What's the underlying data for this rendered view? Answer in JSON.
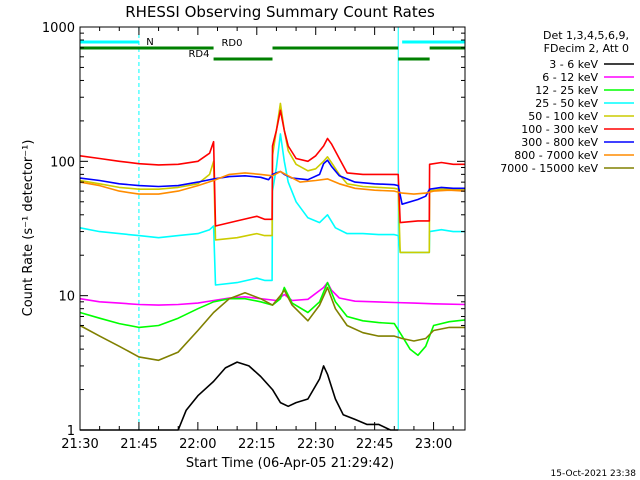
{
  "chart_data": {
    "type": "line",
    "title": "RHESSI Observing Summary Count Rates",
    "xlabel": "Start Time (06-Apr-05 21:29:42)",
    "ylabel": "Count Rate (s⁻¹ detector⁻¹)",
    "yscale": "log",
    "ylim": [
      1,
      1000
    ],
    "xlim_minutes_from_2130": [
      0,
      98
    ],
    "x_tick_labels": [
      "21:30",
      "21:45",
      "22:00",
      "22:15",
      "22:30",
      "22:45",
      "23:00"
    ],
    "y_tick_labels": [
      "1",
      "10",
      "100",
      "1000"
    ],
    "grid": false,
    "legend": {
      "position": "right",
      "header": [
        "Det 1,3,4,5,6,9,",
        "FDecim 2, Att 0"
      ],
      "entries": [
        {
          "label": "3 - 6 keV",
          "color": "#000000"
        },
        {
          "label": "6 - 12 keV",
          "color": "#ff00ff"
        },
        {
          "label": "12 - 25 keV",
          "color": "#00ff00"
        },
        {
          "label": "25 - 50 keV",
          "color": "#00ffff"
        },
        {
          "label": "50 - 100 keV",
          "color": "#cccc00"
        },
        {
          "label": "100 - 300 keV",
          "color": "#ff0000"
        },
        {
          "label": "300 - 800 keV",
          "color": "#0000ff"
        },
        {
          "label": "800 - 7000 keV",
          "color": "#ff8c00"
        },
        {
          "label": "7000 - 15000 keV",
          "color": "#808000"
        }
      ]
    },
    "state_bars": [
      {
        "label": "N",
        "color": "#00ffff",
        "segments": [
          [
            0,
            15
          ],
          [
            82,
            98
          ]
        ]
      },
      {
        "label": "RD0",
        "color": "#008000",
        "segments": [
          [
            0,
            34
          ],
          [
            49,
            81
          ],
          [
            89,
            98
          ]
        ]
      },
      {
        "label": "RD4",
        "color": "#008000",
        "segments": [
          [
            34,
            49
          ],
          [
            81,
            89
          ]
        ]
      }
    ],
    "eclipse_boundaries_minutes": [
      0,
      15,
      81,
      98
    ],
    "series": [
      {
        "label": "3 - 6 keV",
        "color": "#000000",
        "x": [
          0,
          25,
          27,
          30,
          34,
          37,
          40,
          43,
          46,
          49,
          51,
          53,
          55,
          58,
          61,
          62,
          63,
          65,
          67,
          70,
          73,
          76,
          79,
          81
        ],
        "y": [
          1,
          1,
          1.4,
          1.8,
          2.3,
          2.9,
          3.2,
          3.0,
          2.5,
          2.0,
          1.6,
          1.5,
          1.6,
          1.7,
          2.4,
          3.0,
          2.6,
          1.7,
          1.3,
          1.2,
          1.1,
          1.1,
          1.0,
          1
        ]
      },
      {
        "label": "6 - 12 keV",
        "color": "#ff00ff",
        "x": [
          0,
          5,
          10,
          15,
          20,
          25,
          30,
          34,
          38,
          42,
          46,
          50,
          52,
          54,
          58,
          62,
          63,
          64,
          66,
          70,
          75,
          80,
          85,
          90,
          98
        ],
        "y": [
          9.5,
          9.0,
          8.8,
          8.6,
          8.5,
          8.6,
          8.8,
          9.2,
          9.6,
          9.8,
          9.5,
          9.2,
          10.2,
          9.2,
          9.4,
          11.5,
          12.5,
          11.0,
          9.6,
          9.1,
          9.0,
          8.9,
          8.8,
          8.7,
          8.6
        ]
      },
      {
        "label": "12 - 25 keV",
        "color": "#00ff00",
        "x": [
          0,
          5,
          10,
          15,
          20,
          25,
          30,
          34,
          38,
          42,
          46,
          49,
          51,
          52,
          54,
          58,
          61,
          63,
          65,
          68,
          72,
          76,
          80,
          82,
          84,
          86,
          88,
          90,
          94,
          98
        ],
        "y": [
          7.5,
          6.8,
          6.2,
          5.8,
          6.0,
          6.8,
          8.0,
          9.0,
          9.5,
          9.5,
          9.0,
          8.5,
          9.5,
          11.5,
          8.8,
          7.5,
          9.0,
          12.5,
          9.0,
          7.0,
          6.5,
          6.3,
          6.2,
          5.0,
          4.0,
          3.6,
          4.2,
          6.0,
          6.4,
          6.6
        ]
      },
      {
        "label": "25 - 50 keV",
        "color": "#00ffff",
        "x": [
          0,
          5,
          10,
          15,
          20,
          25,
          30,
          33,
          34,
          34.5,
          40,
          45,
          47,
          48.9,
          49,
          50,
          51,
          52,
          53,
          55,
          58,
          61,
          63,
          65,
          68,
          72,
          76,
          80,
          81,
          81.5,
          86,
          88.9,
          89,
          92,
          95,
          98
        ],
        "y": [
          32,
          30,
          29,
          28,
          27,
          28,
          29,
          31,
          33,
          12,
          12.5,
          13.5,
          13,
          13,
          60,
          90,
          160,
          100,
          70,
          50,
          38,
          35,
          40,
          32,
          29,
          29,
          28.5,
          28.5,
          28,
          21,
          21,
          21,
          30,
          31,
          30,
          30
        ]
      },
      {
        "label": "50 - 100 keV",
        "color": "#cccc00",
        "x": [
          0,
          5,
          10,
          15,
          20,
          25,
          30,
          33,
          34,
          34.5,
          40,
          45,
          47,
          48.9,
          49,
          50,
          51,
          52,
          53,
          55,
          58,
          60,
          62,
          63,
          64,
          66,
          68,
          72,
          76,
          80,
          81,
          81.5,
          86,
          88.9,
          89,
          92,
          95,
          98
        ],
        "y": [
          72,
          68,
          64,
          62,
          62,
          64,
          68,
          80,
          100,
          26,
          27,
          29,
          28,
          28,
          110,
          170,
          270,
          170,
          120,
          95,
          85,
          88,
          100,
          108,
          98,
          80,
          68,
          65,
          64,
          63,
          62,
          21,
          21,
          21,
          60,
          62,
          62,
          62
        ]
      },
      {
        "label": "100 - 300 keV",
        "color": "#ff0000",
        "x": [
          0,
          5,
          10,
          15,
          20,
          25,
          30,
          33,
          34,
          34.5,
          40,
          45,
          47,
          48.9,
          49,
          50,
          51,
          52,
          53,
          55,
          58,
          60,
          62,
          63,
          64,
          66,
          68,
          72,
          76,
          80,
          81,
          81.5,
          86,
          88.9,
          89,
          92,
          95,
          98
        ],
        "y": [
          110,
          105,
          100,
          96,
          94,
          95,
          100,
          115,
          140,
          33,
          36,
          39,
          37,
          37,
          130,
          170,
          240,
          170,
          130,
          105,
          100,
          110,
          130,
          148,
          135,
          105,
          82,
          80,
          80,
          80,
          80,
          35,
          36,
          36,
          95,
          98,
          95,
          95
        ]
      },
      {
        "label": "300 - 800 keV",
        "color": "#0000ff",
        "x": [
          0,
          5,
          10,
          15,
          20,
          25,
          30,
          34,
          38,
          42,
          46,
          48,
          49,
          50,
          51,
          52,
          54,
          58,
          61,
          62,
          63,
          64,
          66,
          70,
          75,
          80,
          81,
          82,
          86,
          88,
          89,
          92,
          95,
          98
        ],
        "y": [
          75,
          72,
          68,
          66,
          65,
          66,
          70,
          74,
          77,
          78,
          76,
          73,
          80,
          82,
          84,
          80,
          75,
          73,
          80,
          96,
          102,
          92,
          78,
          70,
          68,
          67,
          66,
          48,
          52,
          55,
          62,
          64,
          63,
          63
        ]
      },
      {
        "label": "800 - 7000 keV",
        "color": "#ff8c00",
        "x": [
          0,
          5,
          10,
          15,
          20,
          25,
          30,
          34,
          38,
          42,
          46,
          49,
          51,
          53,
          56,
          60,
          63,
          66,
          70,
          75,
          80,
          82,
          85,
          88,
          90,
          94,
          98
        ],
        "y": [
          70,
          66,
          60,
          57,
          57,
          60,
          66,
          72,
          80,
          82,
          80,
          78,
          84,
          78,
          70,
          72,
          74,
          68,
          63,
          61,
          60,
          58,
          57,
          58,
          60,
          61,
          60
        ]
      },
      {
        "label": "7000 - 15000 keV",
        "color": "#808000",
        "x": [
          0,
          5,
          10,
          15,
          20,
          25,
          30,
          34,
          38,
          42,
          46,
          49,
          51,
          52,
          54,
          58,
          61,
          63,
          65,
          68,
          72,
          76,
          80,
          82,
          85,
          88,
          90,
          94,
          98
        ],
        "y": [
          6.0,
          5.0,
          4.2,
          3.5,
          3.3,
          3.8,
          5.5,
          7.5,
          9.5,
          10.5,
          9.5,
          8.5,
          10.0,
          11.0,
          8.5,
          6.5,
          8.5,
          11.5,
          8.0,
          6.0,
          5.3,
          5.0,
          5.0,
          4.8,
          4.6,
          4.8,
          5.5,
          5.8,
          5.8
        ]
      }
    ]
  },
  "timestamp": "15-Oct-2021 23:38"
}
